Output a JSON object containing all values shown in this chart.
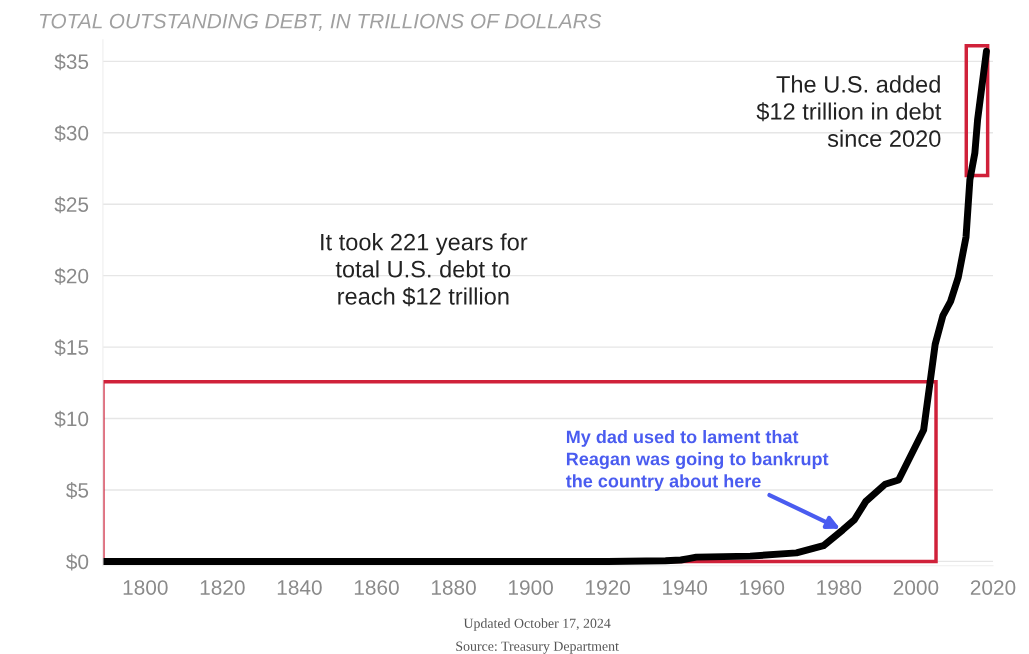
{
  "chart_data": {
    "type": "line",
    "title": "TOTAL OUTSTANDING DEBT, IN TRILLIONS OF DOLLARS",
    "x": [
      1789,
      1800,
      1840,
      1880,
      1920,
      1935,
      1939,
      1941,
      1943,
      1957,
      1969,
      1976,
      1981,
      1984,
      1987,
      1992,
      1995.5,
      2002,
      2003.5,
      2005,
      2007,
      2009,
      2011,
      2013,
      2014,
      2015.3,
      2016,
      2018.3
    ],
    "series": [
      {
        "color": "#000000",
        "values": [
          0,
          0,
          0,
          0,
          0,
          0.05,
          0.1,
          0.2,
          0.3,
          0.37,
          0.6,
          1.1,
          2.2,
          2.9,
          4.2,
          5.4,
          5.7,
          9.2,
          12.2,
          15.2,
          17.2,
          18.2,
          19.9,
          22.7,
          26.7,
          28.6,
          30.9,
          35.7
        ]
      }
    ],
    "xlim": [
      1789,
      2020
    ],
    "xticks": [
      1800,
      1820,
      1840,
      1860,
      1880,
      1900,
      1920,
      1940,
      1960,
      1980,
      2000,
      2020
    ],
    "ylim": [
      -0.3,
      36.5
    ],
    "yticks": [
      {
        "value": 0,
        "label": "$0"
      },
      {
        "value": 5,
        "label": "$5"
      },
      {
        "value": 10,
        "label": "$10"
      },
      {
        "value": 15,
        "label": "$15"
      },
      {
        "value": 20,
        "label": "$20"
      },
      {
        "value": 25,
        "label": "$25"
      },
      {
        "value": 30,
        "label": "$30"
      },
      {
        "value": 35,
        "label": "$35"
      }
    ],
    "grid": "y",
    "legend": false,
    "marker": "none",
    "line_style": "solid",
    "annotations": [
      "The U.S. added\n$12 trillion in debt\nsince 2020",
      "It took 221 years for\ntotal U.S. debt to\nreach $12 trillion",
      {
        "text": "My dad used to lament that\nReagan was going to bankrupt\nthe country about here",
        "x": 1981,
        "y": 2.2
      },
      "Updated October 17, 2024",
      "Source: Treasury Department"
    ]
  }
}
